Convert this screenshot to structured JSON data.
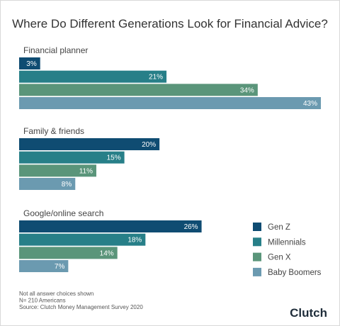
{
  "chart_data": {
    "type": "bar",
    "orientation": "horizontal",
    "title": "Where Do Different Generations Look for Financial Advice?",
    "categories": [
      "Financial planner",
      "Family & friends",
      "Google/online search"
    ],
    "series": [
      {
        "name": "Gen Z",
        "values": [
          3,
          20,
          26
        ],
        "color": "#0f4c72"
      },
      {
        "name": "Millennials",
        "values": [
          21,
          15,
          18
        ],
        "color": "#277f88"
      },
      {
        "name": "Gen X",
        "values": [
          34,
          11,
          14
        ],
        "color": "#5a957a"
      },
      {
        "name": "Baby Boomers",
        "values": [
          43,
          8,
          7
        ],
        "color": "#6b9ab0"
      }
    ],
    "value_suffix": "%",
    "xlim": [
      0,
      43
    ],
    "grid": false,
    "legend_position": "bottom-right",
    "notes": [
      "Not all answer choices shown",
      "N= 210 Americans",
      "Source: Clutch Money Management Survey 2020"
    ],
    "logo": "Clutch"
  }
}
